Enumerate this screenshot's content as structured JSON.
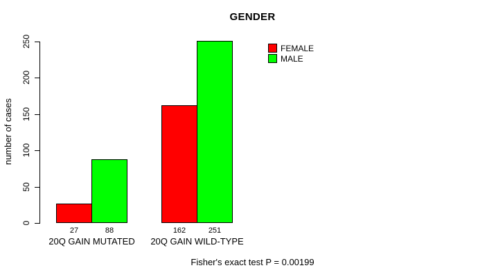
{
  "chart_data": {
    "type": "bar",
    "title": "GENDER",
    "ylabel": "number of cases",
    "xlabel": "",
    "categories": [
      "20Q GAIN MUTATED",
      "20Q GAIN WILD-TYPE"
    ],
    "series": [
      {
        "name": "FEMALE",
        "color": "#ff0000",
        "values": [
          27,
          162
        ]
      },
      {
        "name": "MALE",
        "color": "#00ff00",
        "values": [
          88,
          251
        ]
      }
    ],
    "ylim": [
      0,
      250
    ],
    "yticks": [
      0,
      50,
      100,
      150,
      200,
      250
    ],
    "bar_value_labels": [
      [
        27,
        88
      ],
      [
        162,
        251
      ]
    ],
    "grid": false,
    "legend_position": "top-right",
    "annotation": "Fisher's exact test P = 0.00199"
  }
}
